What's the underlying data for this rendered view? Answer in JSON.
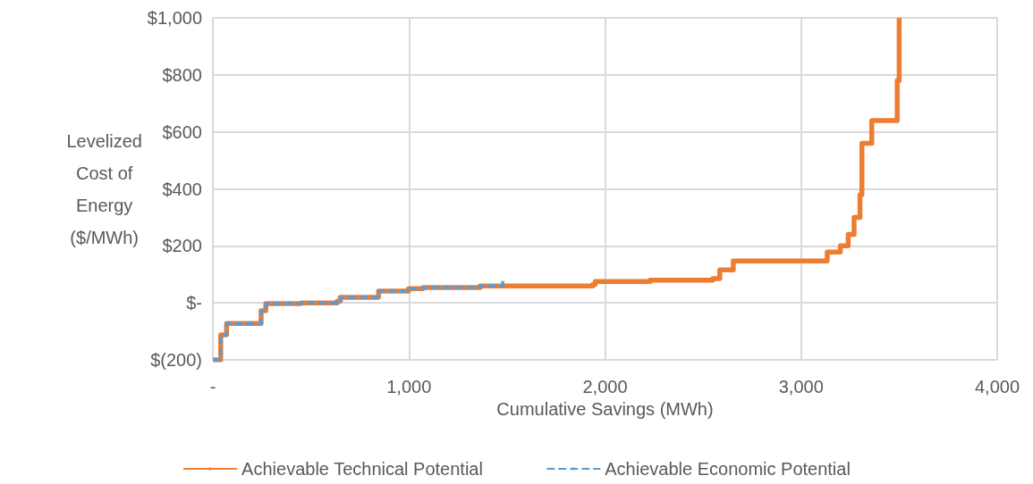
{
  "chart_data": {
    "type": "step",
    "xlabel": "Cumulative Savings (MWh)",
    "ylabel": "Levelized Cost of Energy ($/MWh)",
    "series": [
      {
        "name": "Achievable Technical Potential",
        "color": "#ed7d31",
        "line_style": "solid",
        "x": [
          0,
          40,
          70,
          246,
          270,
          450,
          634,
          650,
          839,
          845,
          998,
          1072,
          1363,
          1938,
          1950,
          2230,
          2549,
          2585,
          2654,
          3133,
          3200,
          3240,
          3270,
          3300,
          3310,
          3360,
          3490,
          3500
        ],
        "values": [
          -200,
          -112,
          -72,
          -28,
          -3,
          0,
          6,
          19,
          20,
          41,
          50,
          54,
          59,
          65,
          75,
          80,
          85,
          116,
          147,
          178,
          200,
          240,
          300,
          380,
          560,
          640,
          780,
          1000
        ]
      },
      {
        "name": "Achievable Economic Potential",
        "color": "#5b9bd5",
        "line_style": "dashed",
        "x": [
          0,
          40,
          70,
          246,
          270,
          450,
          634,
          650,
          839,
          845,
          998,
          1072,
          1363,
          1478
        ],
        "values": [
          -200,
          -112,
          -72,
          -28,
          -3,
          0,
          6,
          19,
          20,
          41,
          50,
          54,
          59,
          80
        ]
      }
    ],
    "xlim": [
      0,
      4000
    ],
    "xticks": [
      {
        "value": 0,
        "label": "-"
      },
      {
        "value": 1000,
        "label": "1,000"
      },
      {
        "value": 2000,
        "label": "2,000"
      },
      {
        "value": 3000,
        "label": "3,000"
      },
      {
        "value": 4000,
        "label": "4,000"
      }
    ],
    "ylim": [
      -200,
      1000
    ],
    "yticks": [
      {
        "value": -200,
        "label": "$(200)"
      },
      {
        "value": 0,
        "label": "$-"
      },
      {
        "value": 200,
        "label": "$200"
      },
      {
        "value": 400,
        "label": "$400"
      },
      {
        "value": 600,
        "label": "$600"
      },
      {
        "value": 800,
        "label": "$800"
      },
      {
        "value": 1000,
        "label": "$1,000"
      }
    ],
    "grid": true,
    "legend": "bottom",
    "marker": "none"
  }
}
